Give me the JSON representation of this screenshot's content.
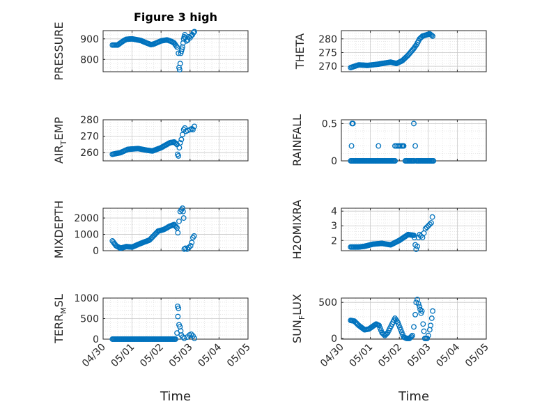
{
  "figure_title": "Figure 3 high",
  "x_axis_label": "Time",
  "x_tick_labels": [
    "04/30",
    "05/01",
    "05/02",
    "05/03",
    "05/04",
    "05/05"
  ],
  "marker_color": "#0072BD",
  "chart_data": [
    {
      "type": "scatter",
      "ylabel": "PRESSURE",
      "ylim": [
        740,
        940
      ],
      "yticks": [
        800,
        900
      ],
      "grid": true,
      "title": "Figure 3 high",
      "anchors": [
        [
          0.32,
          870
        ],
        [
          0.5,
          870
        ],
        [
          0.7,
          890
        ],
        [
          0.8,
          898
        ],
        [
          1.0,
          900
        ],
        [
          1.3,
          892
        ],
        [
          1.5,
          880
        ],
        [
          1.65,
          872
        ],
        [
          1.75,
          875
        ],
        [
          2.0,
          890
        ],
        [
          2.2,
          895
        ],
        [
          2.35,
          888
        ],
        [
          2.45,
          880
        ],
        [
          2.55,
          860
        ],
        [
          2.6,
          830
        ]
      ],
      "extra": [
        [
          2.62,
          760
        ],
        [
          2.64,
          750
        ],
        [
          2.66,
          780
        ],
        [
          2.68,
          830
        ],
        [
          2.7,
          840
        ],
        [
          2.72,
          850
        ],
        [
          2.74,
          860
        ],
        [
          2.76,
          880
        ],
        [
          2.78,
          900
        ],
        [
          2.8,
          910
        ],
        [
          2.82,
          920
        ],
        [
          2.84,
          905
        ],
        [
          2.88,
          890
        ],
        [
          2.92,
          895
        ],
        [
          2.96,
          910
        ],
        [
          3.0,
          905
        ],
        [
          3.04,
          915
        ],
        [
          3.08,
          920
        ],
        [
          3.12,
          930
        ],
        [
          3.15,
          935
        ]
      ]
    },
    {
      "type": "scatter",
      "ylabel": "THETA",
      "ylim": [
        268,
        283
      ],
      "yticks": [
        270,
        275,
        280
      ],
      "grid": true,
      "anchors": [
        [
          0.32,
          269.5
        ],
        [
          0.6,
          270.5
        ],
        [
          0.9,
          270.3
        ],
        [
          1.3,
          270.8
        ],
        [
          1.7,
          271.5
        ],
        [
          1.9,
          271
        ],
        [
          2.1,
          272
        ],
        [
          2.3,
          274
        ],
        [
          2.5,
          276.5
        ],
        [
          2.6,
          278
        ],
        [
          2.7,
          280
        ],
        [
          2.8,
          281
        ],
        [
          2.95,
          281.5
        ],
        [
          3.05,
          281.8
        ],
        [
          3.15,
          281
        ]
      ],
      "extra": []
    },
    {
      "type": "scatter",
      "ylabel": "AIR_TEMP",
      "ylim": [
        255,
        280
      ],
      "yticks": [
        260,
        270,
        280
      ],
      "grid": true,
      "anchors": [
        [
          0.32,
          259
        ],
        [
          0.6,
          260
        ],
        [
          0.85,
          262
        ],
        [
          1.2,
          262.5
        ],
        [
          1.5,
          261.5
        ],
        [
          1.7,
          261
        ],
        [
          2.0,
          263
        ],
        [
          2.3,
          266
        ],
        [
          2.45,
          266.5
        ],
        [
          2.55,
          265
        ]
      ],
      "extra": [
        [
          2.57,
          259
        ],
        [
          2.6,
          258
        ],
        [
          2.63,
          263
        ],
        [
          2.66,
          266
        ],
        [
          2.7,
          268
        ],
        [
          2.74,
          271
        ],
        [
          2.78,
          274
        ],
        [
          2.82,
          275
        ],
        [
          2.86,
          273
        ],
        [
          2.92,
          273.5
        ],
        [
          3.0,
          274
        ],
        [
          3.06,
          274.5
        ],
        [
          3.1,
          274
        ],
        [
          3.15,
          276
        ]
      ]
    },
    {
      "type": "scatter",
      "ylabel": "RAINFALL",
      "ylim": [
        0,
        0.55
      ],
      "yticks": [
        0,
        0.5
      ],
      "grid": true,
      "anchors": [
        [
          0.32,
          0
        ],
        [
          3.18,
          0
        ]
      ],
      "extra": [
        [
          0.35,
          0.2
        ],
        [
          0.37,
          0.5
        ],
        [
          0.4,
          0.5
        ],
        [
          1.28,
          0.2
        ],
        [
          1.85,
          0.2
        ],
        [
          1.9,
          0.2
        ],
        [
          1.95,
          0.2
        ],
        [
          2.0,
          0.2
        ],
        [
          2.05,
          0.2
        ],
        [
          2.1,
          0.2
        ],
        [
          2.12,
          0.2
        ],
        [
          2.15,
          0.2
        ],
        [
          2.5,
          0.5
        ],
        [
          2.55,
          0.2
        ]
      ],
      "gaps": [
        [
          1.88,
          2.2
        ],
        [
          2.55,
          2.58
        ]
      ]
    },
    {
      "type": "scatter",
      "ylabel": "MIXDEPTH",
      "ylim": [
        0,
        2600
      ],
      "yticks": [
        0,
        1000,
        2000
      ],
      "grid": true,
      "anchors": [
        [
          0.32,
          600
        ],
        [
          0.45,
          300
        ],
        [
          0.6,
          150
        ],
        [
          0.8,
          250
        ],
        [
          1.0,
          220
        ],
        [
          1.3,
          450
        ],
        [
          1.6,
          650
        ],
        [
          1.9,
          1200
        ],
        [
          2.1,
          1300
        ],
        [
          2.3,
          1500
        ],
        [
          2.45,
          1600
        ],
        [
          2.55,
          1400
        ]
      ],
      "extra": [
        [
          2.58,
          1100
        ],
        [
          2.62,
          1800
        ],
        [
          2.66,
          2400
        ],
        [
          2.7,
          2500
        ],
        [
          2.74,
          2600
        ],
        [
          2.76,
          2400
        ],
        [
          2.78,
          2000
        ],
        [
          2.8,
          100
        ],
        [
          2.84,
          150
        ],
        [
          2.9,
          100
        ],
        [
          2.96,
          200
        ],
        [
          3.02,
          300
        ],
        [
          3.06,
          500
        ],
        [
          3.1,
          800
        ],
        [
          3.14,
          900
        ]
      ]
    },
    {
      "type": "scatter",
      "ylabel": "H2OMIXRA",
      "ylim": [
        1.3,
        4.2
      ],
      "yticks": [
        2,
        3,
        4
      ],
      "grid": true,
      "anchors": [
        [
          0.32,
          1.55
        ],
        [
          0.6,
          1.55
        ],
        [
          0.8,
          1.6
        ],
        [
          1.1,
          1.75
        ],
        [
          1.4,
          1.8
        ],
        [
          1.7,
          1.7
        ],
        [
          2.0,
          2.0
        ],
        [
          2.3,
          2.4
        ],
        [
          2.5,
          2.35
        ]
      ],
      "extra": [
        [
          2.52,
          2.2
        ],
        [
          2.55,
          1.7
        ],
        [
          2.58,
          1.4
        ],
        [
          2.62,
          1.6
        ],
        [
          2.66,
          2.2
        ],
        [
          2.7,
          2.4
        ],
        [
          2.74,
          2.3
        ],
        [
          2.8,
          2.2
        ],
        [
          2.85,
          2.5
        ],
        [
          2.9,
          2.8
        ],
        [
          2.95,
          2.9
        ],
        [
          3.0,
          3.0
        ],
        [
          3.05,
          3.1
        ],
        [
          3.1,
          3.2
        ],
        [
          3.14,
          3.6
        ]
      ]
    },
    {
      "type": "scatter",
      "ylabel": "TERR_MSL",
      "ylim": [
        0,
        1000
      ],
      "yticks": [
        0,
        500,
        1000
      ],
      "grid": true,
      "anchors": [
        [
          0.32,
          0
        ],
        [
          2.5,
          0
        ],
        [
          2.55,
          150
        ]
      ],
      "extra": [
        [
          2.57,
          800
        ],
        [
          2.6,
          750
        ],
        [
          2.58,
          550
        ],
        [
          2.62,
          350
        ],
        [
          2.65,
          300
        ],
        [
          2.68,
          200
        ],
        [
          2.7,
          100
        ],
        [
          2.75,
          50
        ],
        [
          2.8,
          20
        ],
        [
          2.9,
          50
        ],
        [
          2.98,
          100
        ],
        [
          3.04,
          120
        ],
        [
          3.1,
          80
        ],
        [
          3.15,
          20
        ]
      ]
    },
    {
      "type": "scatter",
      "ylabel": "SUN_FLUX",
      "ylim": [
        -10,
        560
      ],
      "yticks": [
        0,
        500
      ],
      "grid": true,
      "anchors": [
        [
          0.32,
          250
        ],
        [
          0.45,
          240
        ],
        [
          0.6,
          180
        ],
        [
          0.8,
          120
        ],
        [
          0.95,
          130
        ],
        [
          1.2,
          200
        ],
        [
          1.3,
          180
        ],
        [
          1.4,
          80
        ],
        [
          1.5,
          40
        ],
        [
          1.6,
          80
        ],
        [
          1.75,
          200
        ],
        [
          1.85,
          280
        ],
        [
          1.95,
          220
        ],
        [
          2.05,
          120
        ],
        [
          2.15,
          20
        ],
        [
          2.25,
          0
        ],
        [
          2.35,
          0
        ],
        [
          2.45,
          40
        ]
      ],
      "extra": [
        [
          2.5,
          160
        ],
        [
          2.55,
          330
        ],
        [
          2.58,
          500
        ],
        [
          2.62,
          540
        ],
        [
          2.66,
          480
        ],
        [
          2.7,
          440
        ],
        [
          2.72,
          400
        ],
        [
          2.75,
          350
        ],
        [
          2.78,
          380
        ],
        [
          2.82,
          200
        ],
        [
          2.85,
          100
        ],
        [
          2.88,
          0
        ],
        [
          2.92,
          0
        ],
        [
          2.96,
          0
        ],
        [
          3.0,
          40
        ],
        [
          3.05,
          120
        ],
        [
          3.08,
          180
        ],
        [
          3.12,
          280
        ],
        [
          3.15,
          380
        ]
      ]
    }
  ]
}
